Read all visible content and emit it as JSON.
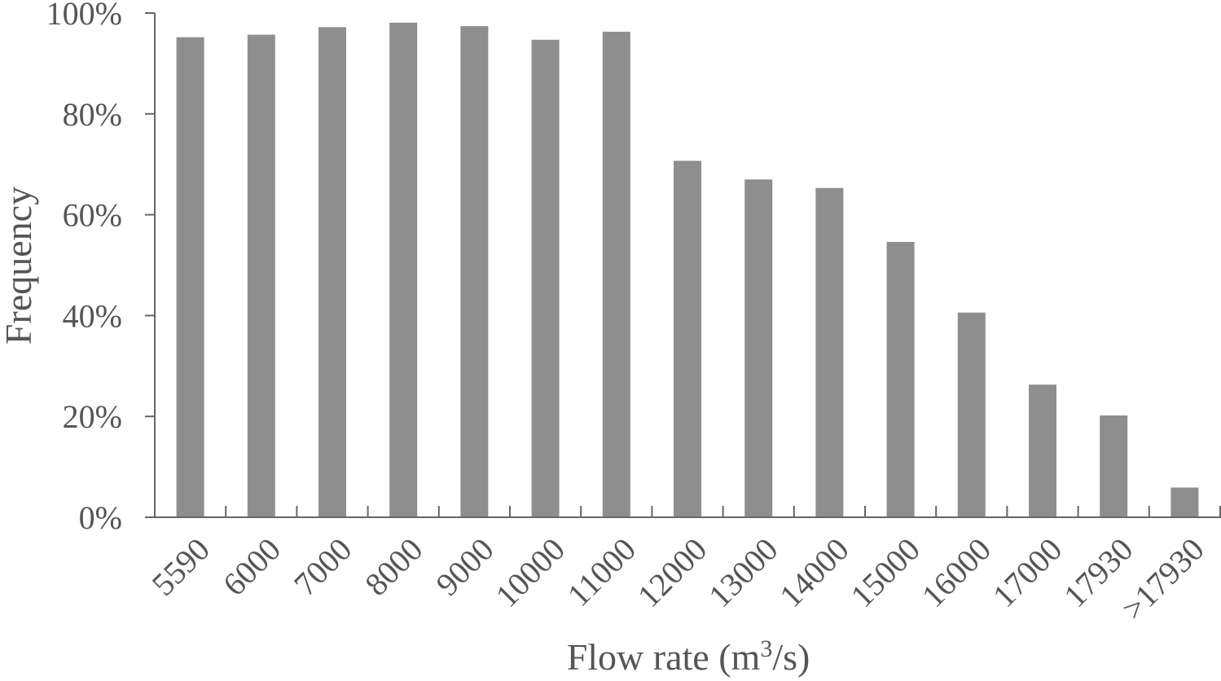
{
  "chart_data": {
    "type": "bar",
    "categories": [
      "5590",
      "6000",
      "7000",
      "8000",
      "9000",
      "10000",
      "11000",
      "12000",
      "13000",
      "14000",
      "15000",
      "16000",
      "17000",
      "17930",
      ">17930"
    ],
    "values": [
      95.2,
      95.7,
      97.2,
      98.1,
      97.4,
      94.7,
      96.3,
      70.7,
      67.0,
      65.3,
      54.6,
      40.6,
      26.3,
      20.2,
      5.9
    ],
    "ylim": [
      0,
      100
    ],
    "yticks": [
      0,
      20,
      40,
      60,
      80,
      100
    ],
    "ytick_labels": [
      "0%",
      "20%",
      "40%",
      "60%",
      "80%",
      "100%"
    ],
    "xlabel": "Flow rate (m",
    "xlabel_sup": "3",
    "xlabel_tail": "/s)",
    "ylabel": "Frequency",
    "bar_color": "#8e8e8e",
    "axis_color": "#666666",
    "text_color": "#555555",
    "grid": false,
    "legend": "none"
  }
}
